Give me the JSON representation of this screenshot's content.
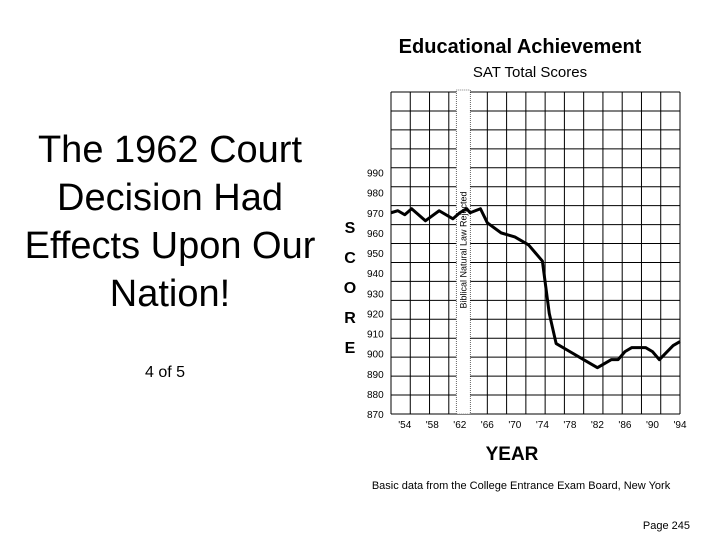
{
  "slide": {
    "title": "The 1962 Court Decision Had Effects Upon Our Nation!",
    "counter": "4 of 5",
    "page_number": "Page 245"
  },
  "chart_data": {
    "type": "line",
    "title": "Educational Achievement",
    "subtitle": "SAT Total Scores",
    "xlabel": "YEAR",
    "ylabel_letters": [
      "S",
      "C",
      "O",
      "R",
      "E"
    ],
    "x_ticks": [
      "'54",
      "'58",
      "'62",
      "'66",
      "'70",
      "'74",
      "'78",
      "'82",
      "'86",
      "'90",
      "'94"
    ],
    "y_ticks": [
      870,
      880,
      890,
      900,
      910,
      920,
      930,
      940,
      950,
      960,
      970,
      980,
      990
    ],
    "y_tick_labels": [
      "870",
      "880",
      "890",
      "900",
      "910",
      "920",
      "930",
      "940",
      "950",
      "960",
      "970",
      "980",
      "990"
    ],
    "xlim": [
      1952,
      1994
    ],
    "ylim": [
      870,
      1030
    ],
    "grid": true,
    "annotation": {
      "text": "Biblical Natural Law Rejected",
      "year": 1962.5
    },
    "source": "Basic data from the College Entrance Exam Board, New York",
    "series": [
      {
        "color": "#000000",
        "x": [
          1952,
          1953,
          1954,
          1955,
          1957,
          1959,
          1961,
          1962,
          1963,
          1963.5,
          1965,
          1966,
          1968,
          1969,
          1970,
          1971,
          1972,
          1973,
          1974,
          1975,
          1976,
          1978,
          1980,
          1982,
          1984,
          1985,
          1986,
          1987,
          1988,
          1989,
          1990,
          1991,
          1993,
          1994
        ],
        "y": [
          970,
          971,
          969,
          972,
          966,
          971,
          967,
          970,
          972,
          970,
          972,
          965,
          960,
          959,
          958,
          956,
          954,
          950,
          946,
          920,
          905,
          901,
          897,
          893,
          897,
          897,
          901,
          903,
          903,
          903,
          901,
          897,
          904,
          906
        ]
      }
    ]
  }
}
